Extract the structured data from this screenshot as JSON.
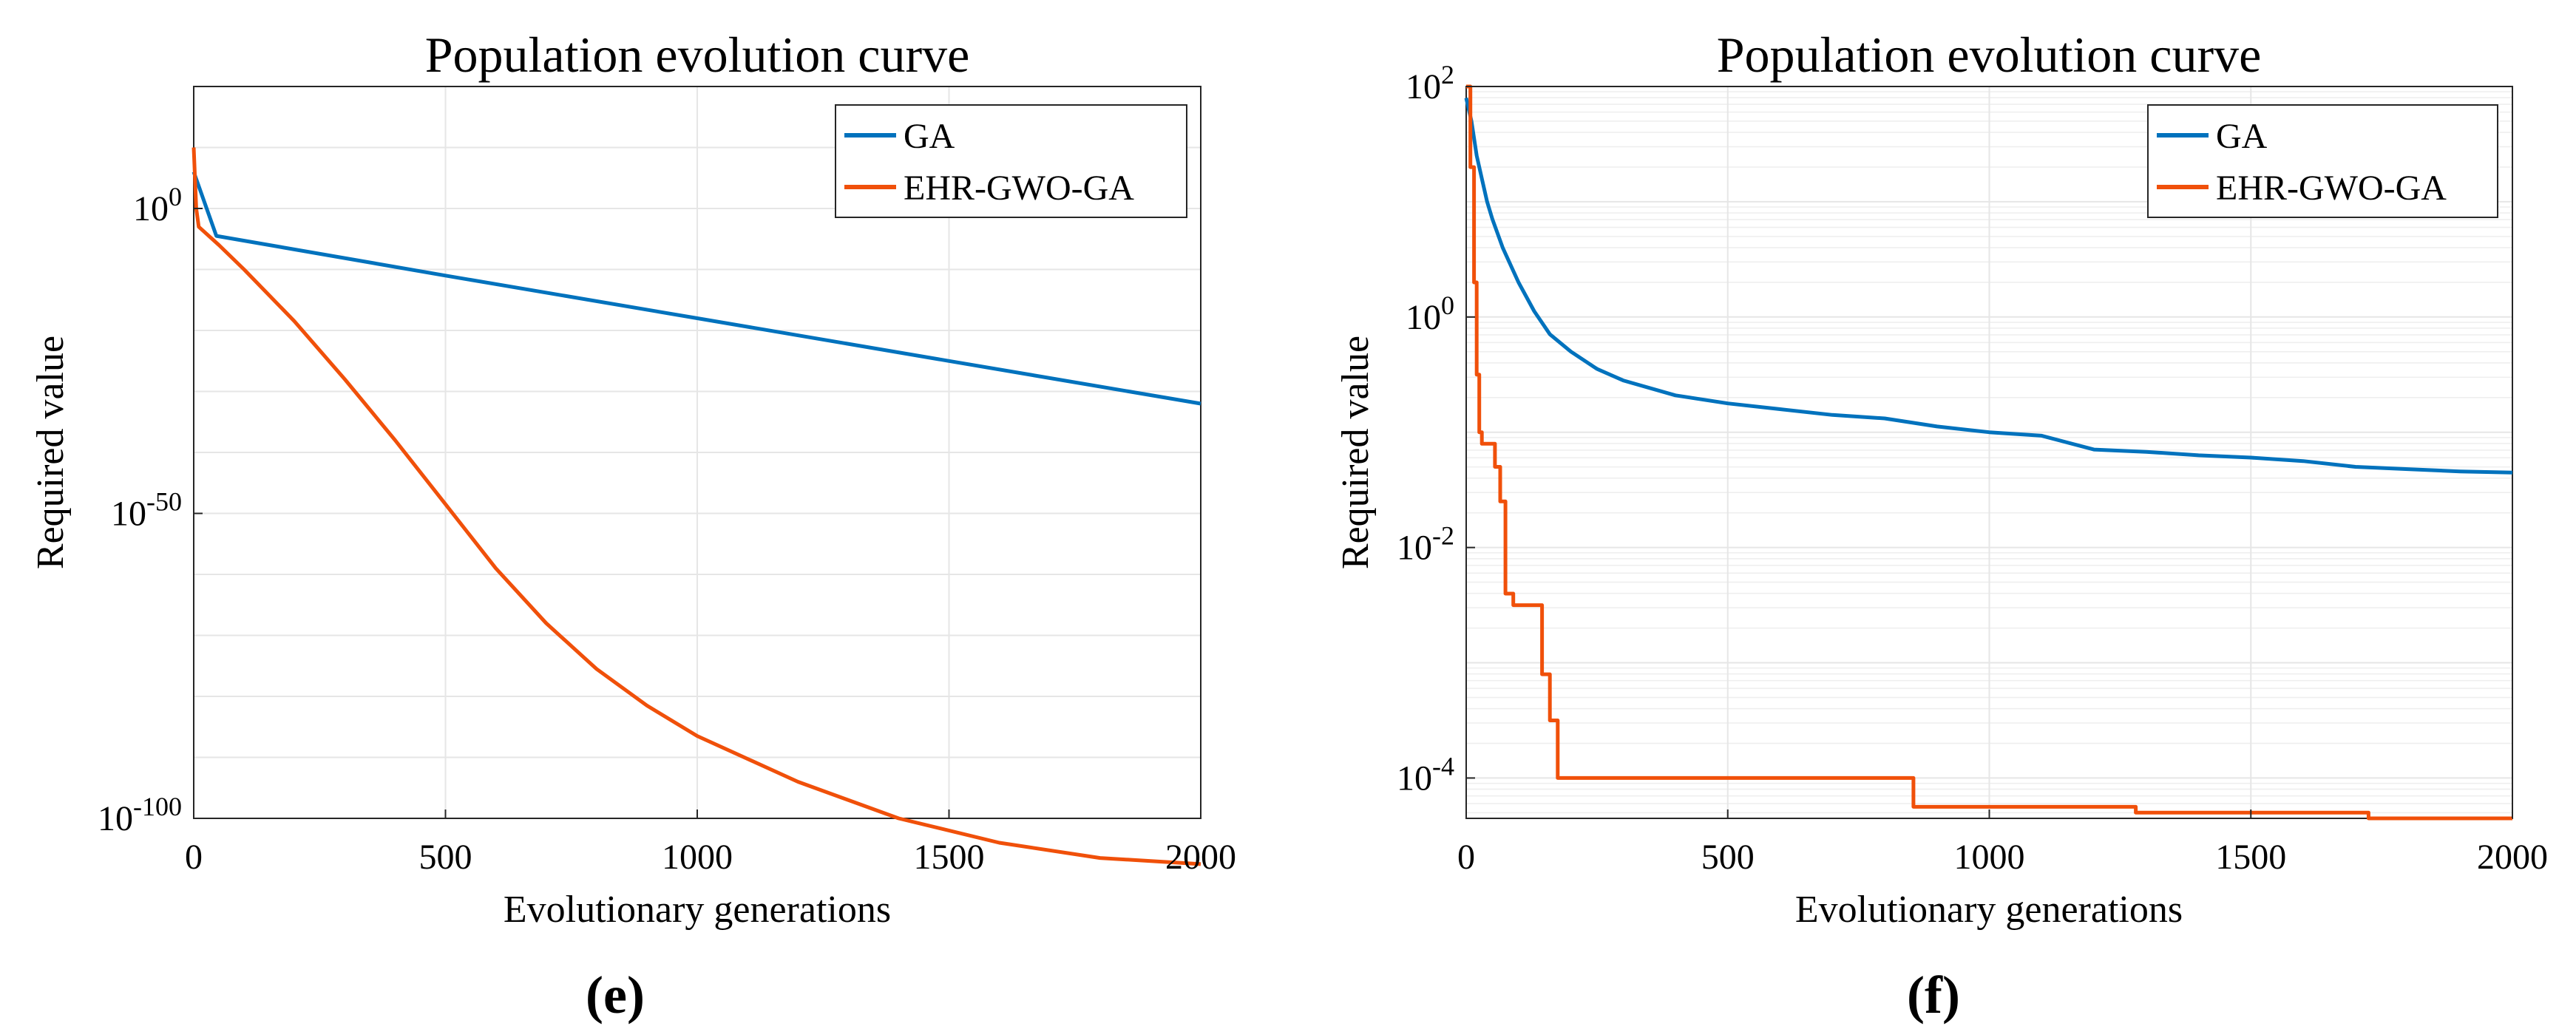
{
  "colors": {
    "GA": "#0072BD",
    "EHR": "#F0500A",
    "grid": "#e6e6e6",
    "axis": "#262626"
  },
  "chart_data": [
    {
      "panel_label": "(e)",
      "type": "line",
      "title": "Population evolution curve",
      "xlabel": "Evolutionary generations",
      "ylabel": "Required value",
      "y_scale": "log",
      "xlim": [
        0,
        2000
      ],
      "ylim_exp": [
        -100,
        20
      ],
      "xticks": [
        0,
        500,
        1000,
        1500,
        2000
      ],
      "xtick_labels": [
        "0",
        "500",
        "1000",
        "1500",
        "2000"
      ],
      "yticks_exp": [
        0,
        -50,
        -100
      ],
      "ytick_labels": [
        {
          "base": "10",
          "exp": "0"
        },
        {
          "base": "10",
          "exp": "-50"
        },
        {
          "base": "10",
          "exp": "-100"
        }
      ],
      "grid": true,
      "legend_position": "top-right",
      "series": [
        {
          "name": "GA",
          "color_key": "GA",
          "x": [
            0,
            45,
            500,
            1000,
            1500,
            2000
          ],
          "y_exp": [
            6,
            -4.5,
            -11,
            -18,
            -25,
            -32
          ]
        },
        {
          "name": "EHR-GWO-GA",
          "color_key": "EHR",
          "x": [
            0,
            5,
            10,
            50,
            100,
            200,
            300,
            400,
            500,
            600,
            700,
            800,
            900,
            1000,
            1200,
            1400,
            1600,
            1800,
            2000
          ],
          "y_exp": [
            10,
            0,
            -3,
            -6,
            -10,
            -18.5,
            -28,
            -38,
            -48.5,
            -59,
            -68,
            -75.5,
            -81.5,
            -86.5,
            -94,
            -100,
            -104,
            -106.5,
            -107.5
          ]
        }
      ]
    },
    {
      "panel_label": "(f)",
      "type": "line",
      "title": "Population evolution curve",
      "xlabel": "Evolutionary generations",
      "ylabel": "Required value",
      "y_scale": "log",
      "xlim": [
        0,
        2000
      ],
      "ylim_exp": [
        -4.35,
        2
      ],
      "xticks": [
        0,
        500,
        1000,
        1500,
        2000
      ],
      "xtick_labels": [
        "0",
        "500",
        "1000",
        "1500",
        "2000"
      ],
      "yticks_exp": [
        2,
        0,
        -2,
        -4
      ],
      "ytick_labels": [
        {
          "base": "10",
          "exp": "2"
        },
        {
          "base": "10",
          "exp": "0"
        },
        {
          "base": "10",
          "exp": "-2"
        },
        {
          "base": "10",
          "exp": "-4"
        }
      ],
      "grid": true,
      "minor_grid": true,
      "legend_position": "top-right",
      "series": [
        {
          "name": "GA",
          "color_key": "GA",
          "step": false,
          "x": [
            0,
            10,
            20,
            30,
            40,
            50,
            70,
            100,
            130,
            160,
            200,
            250,
            300,
            400,
            500,
            600,
            700,
            800,
            900,
            1000,
            1100,
            1200,
            1300,
            1400,
            1500,
            1600,
            1700,
            1800,
            1900,
            2000
          ],
          "y_exp": [
            1.9,
            1.7,
            1.4,
            1.2,
            1.0,
            0.85,
            0.6,
            0.3,
            0.05,
            -0.15,
            -0.3,
            -0.45,
            -0.55,
            -0.68,
            -0.75,
            -0.8,
            -0.85,
            -0.88,
            -0.95,
            -1.0,
            -1.03,
            -1.15,
            -1.17,
            -1.2,
            -1.22,
            -1.25,
            -1.3,
            -1.32,
            -1.34,
            -1.35
          ]
        },
        {
          "name": "EHR-GWO-GA",
          "color_key": "EHR",
          "step": true,
          "x": [
            0,
            8,
            15,
            20,
            25,
            30,
            55,
            65,
            75,
            90,
            100,
            115,
            130,
            145,
            155,
            160,
            175,
            185,
            300,
            500,
            700,
            855,
            870,
            1000,
            1200,
            1280,
            1290,
            1400,
            1600,
            1725,
            1735,
            2000
          ],
          "y_exp": [
            2,
            1.3,
            0.3,
            -0.5,
            -1.0,
            -1.1,
            -1.3,
            -1.6,
            -2.4,
            -2.5,
            -2.5,
            -2.5,
            -2.5,
            -3.1,
            -3.1,
            -3.5,
            -4.0,
            -4.0,
            -4.0,
            -4.0,
            -4.0,
            -4.25,
            -4.25,
            -4.25,
            -4.25,
            -4.3,
            -4.3,
            -4.3,
            -4.3,
            -4.35,
            -4.35,
            -4.35
          ]
        }
      ]
    }
  ]
}
